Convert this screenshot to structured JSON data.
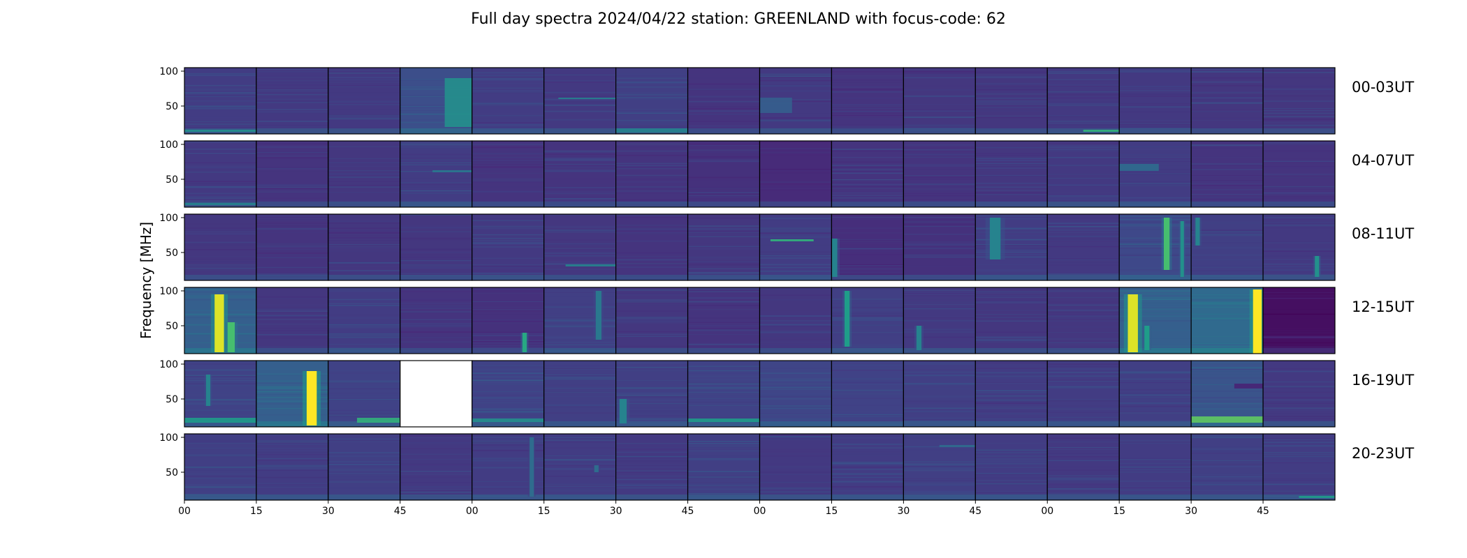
{
  "chart_data": {
    "type": "heatmap",
    "title": "Full day spectra 2024/04/22 station: GREENLAND with focus-code: 62",
    "ylabel": "Frequency [MHz]",
    "xlabel": "",
    "ylim": [
      10,
      105
    ],
    "y_ticks": [
      "50",
      "100"
    ],
    "x_ticks": [
      "00",
      "15",
      "30",
      "45",
      "00",
      "15",
      "30",
      "45",
      "00",
      "15",
      "30",
      "45",
      "00",
      "15",
      "30",
      "45"
    ],
    "colormap": [
      "#440154",
      "#482878",
      "#3e4989",
      "#31688e",
      "#26828e",
      "#1f9e89",
      "#35b779",
      "#6ece58",
      "#b5de2b",
      "#fde725"
    ],
    "missing_color": "#ffffff",
    "rows": [
      {
        "label": "00-03UT",
        "panels": [
          0.18,
          0.17,
          0.17,
          0.24,
          0.18,
          0.17,
          0.19,
          0.15,
          0.17,
          0.15,
          0.16,
          0.16,
          0.17,
          0.17,
          0.16,
          0.16
        ]
      },
      {
        "label": "04-07UT",
        "panels": [
          0.17,
          0.15,
          0.16,
          0.18,
          0.15,
          0.15,
          0.15,
          0.14,
          0.12,
          0.15,
          0.15,
          0.16,
          0.17,
          0.18,
          0.15,
          0.15
        ]
      },
      {
        "label": "08-11UT",
        "panels": [
          0.16,
          0.15,
          0.16,
          0.16,
          0.17,
          0.16,
          0.15,
          0.16,
          0.18,
          0.13,
          0.14,
          0.18,
          0.17,
          0.22,
          0.19,
          0.17
        ]
      },
      {
        "label": "12-15UT",
        "panels": [
          0.3,
          0.16,
          0.18,
          0.15,
          0.14,
          0.19,
          0.16,
          0.15,
          0.16,
          0.19,
          0.17,
          0.16,
          0.16,
          0.3,
          0.34,
          0.04
        ]
      },
      {
        "label": "16-19UT",
        "panels": [
          0.2,
          0.3,
          0.2,
          null,
          0.2,
          0.19,
          0.19,
          0.2,
          0.21,
          0.2,
          0.19,
          0.18,
          0.18,
          0.19,
          0.26,
          0.17
        ]
      },
      {
        "label": "20-23UT",
        "panels": [
          0.19,
          0.18,
          0.19,
          0.17,
          0.18,
          0.18,
          0.17,
          0.19,
          0.17,
          0.18,
          0.19,
          0.18,
          0.17,
          0.18,
          0.19,
          0.18
        ]
      }
    ],
    "features": [
      {
        "row": 0,
        "panel": 3,
        "kind": "band",
        "x0": 0.62,
        "x1": 1.0,
        "f0": 20,
        "f1": 90,
        "level": 0.5
      },
      {
        "row": 0,
        "panel": 5,
        "kind": "line",
        "x0": 0.2,
        "x1": 1.0,
        "f0": 60,
        "f1": 62,
        "level": 0.45
      },
      {
        "row": 0,
        "panel": 8,
        "kind": "band",
        "x0": 0.0,
        "x1": 0.45,
        "f0": 40,
        "f1": 62,
        "level": 0.3
      },
      {
        "row": 0,
        "panel": 0,
        "kind": "line",
        "x0": 0.0,
        "x1": 1.0,
        "f0": 13,
        "f1": 16,
        "level": 0.5
      },
      {
        "row": 0,
        "panel": 6,
        "kind": "line",
        "x0": 0.0,
        "x1": 1.0,
        "f0": 12,
        "f1": 18,
        "level": 0.45
      },
      {
        "row": 0,
        "panel": 12,
        "kind": "line",
        "x0": 0.5,
        "x1": 1.0,
        "f0": 13,
        "f1": 16,
        "level": 0.65
      },
      {
        "row": 1,
        "panel": 3,
        "kind": "line",
        "x0": 0.45,
        "x1": 1.0,
        "f0": 60,
        "f1": 63,
        "level": 0.4
      },
      {
        "row": 1,
        "panel": 13,
        "kind": "band",
        "x0": 0.0,
        "x1": 0.55,
        "f0": 62,
        "f1": 72,
        "level": 0.35
      },
      {
        "row": 1,
        "panel": 0,
        "kind": "line",
        "x0": 0.0,
        "x1": 1.0,
        "f0": 13,
        "f1": 16,
        "level": 0.45
      },
      {
        "row": 2,
        "panel": 8,
        "kind": "line",
        "x0": 0.15,
        "x1": 0.75,
        "f0": 66,
        "f1": 69,
        "level": 0.65
      },
      {
        "row": 2,
        "panel": 5,
        "kind": "line",
        "x0": 0.3,
        "x1": 1.0,
        "f0": 30,
        "f1": 33,
        "level": 0.45
      },
      {
        "row": 2,
        "panel": 13,
        "kind": "burst",
        "x0": 0.62,
        "x1": 0.7,
        "f0": 25,
        "f1": 100,
        "level": 0.7
      },
      {
        "row": 2,
        "panel": 13,
        "kind": "burst",
        "x0": 0.85,
        "x1": 0.9,
        "f0": 15,
        "f1": 95,
        "level": 0.5
      },
      {
        "row": 2,
        "panel": 14,
        "kind": "burst",
        "x0": 0.06,
        "x1": 0.12,
        "f0": 60,
        "f1": 100,
        "level": 0.45
      },
      {
        "row": 2,
        "panel": 15,
        "kind": "burst",
        "x0": 0.72,
        "x1": 0.78,
        "f0": 15,
        "f1": 45,
        "level": 0.5
      },
      {
        "row": 2,
        "panel": 11,
        "kind": "burst",
        "x0": 0.2,
        "x1": 0.35,
        "f0": 40,
        "f1": 100,
        "level": 0.45
      },
      {
        "row": 2,
        "panel": 9,
        "kind": "burst",
        "x0": 0.0,
        "x1": 0.08,
        "f0": 15,
        "f1": 70,
        "level": 0.45
      },
      {
        "row": 3,
        "panel": 0,
        "kind": "burst",
        "x0": 0.42,
        "x1": 0.55,
        "f0": 12,
        "f1": 95,
        "level": 0.95
      },
      {
        "row": 3,
        "panel": 0,
        "kind": "burst",
        "x0": 0.6,
        "x1": 0.7,
        "f0": 12,
        "f1": 55,
        "level": 0.7
      },
      {
        "row": 3,
        "panel": 5,
        "kind": "burst",
        "x0": 0.72,
        "x1": 0.8,
        "f0": 30,
        "f1": 100,
        "level": 0.4
      },
      {
        "row": 3,
        "panel": 4,
        "kind": "burst",
        "x0": 0.7,
        "x1": 0.76,
        "f0": 12,
        "f1": 40,
        "level": 0.6
      },
      {
        "row": 3,
        "panel": 9,
        "kind": "burst",
        "x0": 0.18,
        "x1": 0.25,
        "f0": 20,
        "f1": 100,
        "level": 0.55
      },
      {
        "row": 3,
        "panel": 10,
        "kind": "burst",
        "x0": 0.18,
        "x1": 0.25,
        "f0": 15,
        "f1": 50,
        "level": 0.45
      },
      {
        "row": 3,
        "panel": 13,
        "kind": "burst",
        "x0": 0.12,
        "x1": 0.26,
        "f0": 12,
        "f1": 95,
        "level": 0.95
      },
      {
        "row": 3,
        "panel": 13,
        "kind": "burst",
        "x0": 0.35,
        "x1": 0.42,
        "f0": 15,
        "f1": 50,
        "level": 0.55
      },
      {
        "row": 3,
        "panel": 14,
        "kind": "burst",
        "x0": 0.86,
        "x1": 0.98,
        "f0": 10,
        "f1": 102,
        "level": 1.0
      },
      {
        "row": 4,
        "panel": 1,
        "kind": "burst",
        "x0": 0.7,
        "x1": 0.84,
        "f0": 12,
        "f1": 90,
        "level": 1.0
      },
      {
        "row": 4,
        "panel": 0,
        "kind": "burst",
        "x0": 0.3,
        "x1": 0.36,
        "f0": 40,
        "f1": 85,
        "level": 0.45
      },
      {
        "row": 4,
        "panel": 0,
        "kind": "line",
        "x0": 0.0,
        "x1": 1.0,
        "f0": 16,
        "f1": 23,
        "level": 0.55
      },
      {
        "row": 4,
        "panel": 2,
        "kind": "line",
        "x0": 0.4,
        "x1": 1.0,
        "f0": 16,
        "f1": 23,
        "level": 0.65
      },
      {
        "row": 4,
        "panel": 14,
        "kind": "line",
        "x0": 0.0,
        "x1": 1.0,
        "f0": 16,
        "f1": 25,
        "level": 0.75
      },
      {
        "row": 4,
        "panel": 14,
        "kind": "band",
        "x0": 0.6,
        "x1": 1.0,
        "f0": 65,
        "f1": 72,
        "level": 0.1
      },
      {
        "row": 4,
        "panel": 6,
        "kind": "burst",
        "x0": 0.05,
        "x1": 0.15,
        "f0": 15,
        "f1": 50,
        "level": 0.45
      },
      {
        "row": 4,
        "panel": 7,
        "kind": "line",
        "x0": 0.0,
        "x1": 1.0,
        "f0": 17,
        "f1": 22,
        "level": 0.55
      },
      {
        "row": 4,
        "panel": 4,
        "kind": "line",
        "x0": 0.0,
        "x1": 1.0,
        "f0": 17,
        "f1": 22,
        "level": 0.5
      },
      {
        "row": 5,
        "panel": 5,
        "kind": "burst",
        "x0": 0.7,
        "x1": 0.76,
        "f0": 50,
        "f1": 60,
        "level": 0.35
      },
      {
        "row": 5,
        "panel": 4,
        "kind": "burst",
        "x0": 0.8,
        "x1": 0.86,
        "f0": 15,
        "f1": 100,
        "level": 0.35
      },
      {
        "row": 5,
        "panel": 10,
        "kind": "line",
        "x0": 0.5,
        "x1": 1.0,
        "f0": 86,
        "f1": 89,
        "level": 0.35
      },
      {
        "row": 5,
        "panel": 15,
        "kind": "line",
        "x0": 0.5,
        "x1": 1.0,
        "f0": 13,
        "f1": 16,
        "level": 0.55
      }
    ]
  }
}
